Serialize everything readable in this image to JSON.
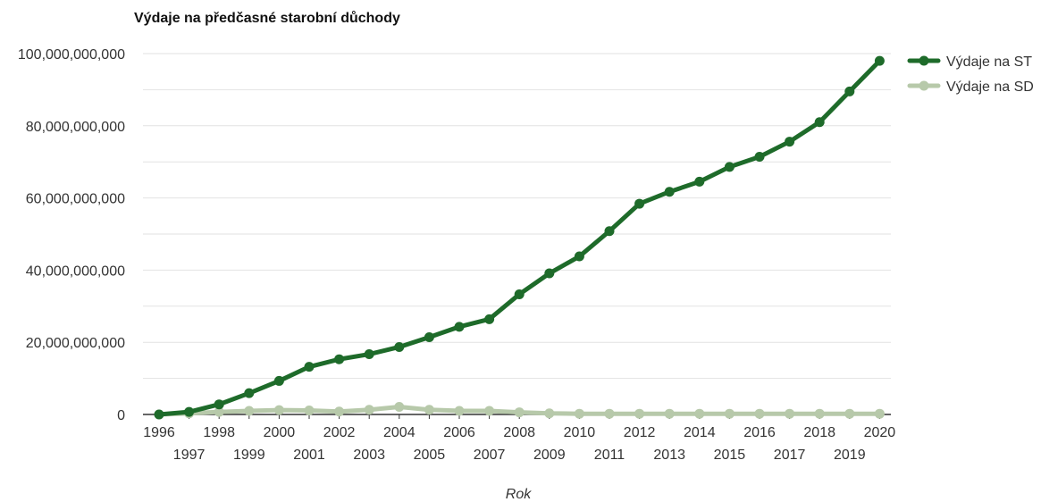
{
  "chart_data": {
    "type": "line",
    "title": "Výdaje na předčasné starobní důchody",
    "xlabel": "Rok",
    "ylabel": "",
    "ylim": [
      0,
      100000000000
    ],
    "y_ticks": [
      0,
      20000000000,
      40000000000,
      60000000000,
      80000000000,
      100000000000
    ],
    "y_tick_labels": [
      "0",
      "20,000,000,000",
      "40,000,000,000",
      "60,000,000,000",
      "80,000,000,000",
      "100,000,000,000"
    ],
    "grid": true,
    "legend_position": "right",
    "x": [
      "1996",
      "1997",
      "1998",
      "1999",
      "2000",
      "2001",
      "2002",
      "2003",
      "2004",
      "2005",
      "2006",
      "2007",
      "2008",
      "2009",
      "2010",
      "2011",
      "2012",
      "2013",
      "2014",
      "2015",
      "2016",
      "2017",
      "2018",
      "2019",
      "2020"
    ],
    "series": [
      {
        "name": "Výdaje na ST",
        "color": "#1e6b2a",
        "values": [
          0,
          700000000,
          2800000000,
          5900000000,
          9300000000,
          13200000000,
          15300000000,
          16700000000,
          18700000000,
          21400000000,
          24300000000,
          26400000000,
          33300000000,
          39100000000,
          43800000000,
          50800000000,
          58400000000,
          61700000000,
          64500000000,
          68600000000,
          71400000000,
          75600000000,
          81000000000,
          89500000000,
          98000000000
        ]
      },
      {
        "name": "Výdaje na SD",
        "color": "#b7c9aa",
        "values": [
          0,
          300000000,
          700000000,
          1000000000,
          1200000000,
          1100000000,
          800000000,
          1300000000,
          2100000000,
          1300000000,
          1000000000,
          1000000000,
          600000000,
          300000000,
          200000000,
          200000000,
          200000000,
          200000000,
          200000000,
          200000000,
          200000000,
          200000000,
          200000000,
          200000000,
          200000000
        ]
      }
    ]
  }
}
